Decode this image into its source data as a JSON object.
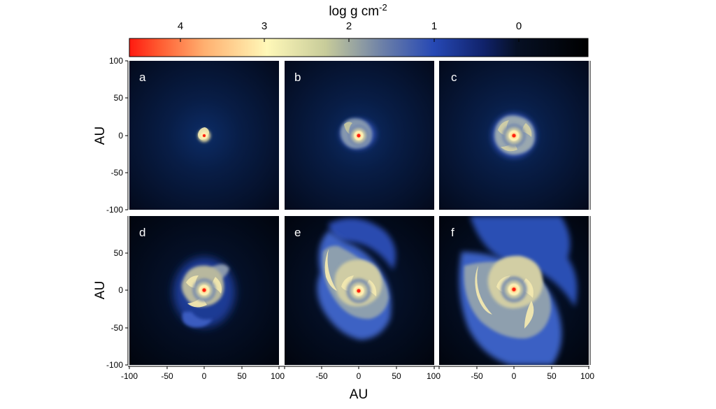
{
  "colorbar": {
    "label_main": "log g cm",
    "label_exp": "-2",
    "ticks": [
      {
        "value": 4,
        "label": "4"
      },
      {
        "value": 3,
        "label": "3"
      },
      {
        "value": 2,
        "label": "2"
      },
      {
        "value": 1,
        "label": "1"
      },
      {
        "value": 0,
        "label": "0"
      }
    ],
    "range": [
      4.65,
      -0.85
    ],
    "stops": [
      {
        "v": 4.65,
        "color": "#ff1a10"
      },
      {
        "v": 4.3,
        "color": "#ff5a30"
      },
      {
        "v": 3.75,
        "color": "#ffb070"
      },
      {
        "v": 3.0,
        "color": "#fff8b8"
      },
      {
        "v": 2.3,
        "color": "#c8cc9a"
      },
      {
        "v": 1.6,
        "color": "#6a7ea8"
      },
      {
        "v": 1.0,
        "color": "#2648b4"
      },
      {
        "v": 0.4,
        "color": "#10226a"
      },
      {
        "v": 0.0,
        "color": "#061024"
      },
      {
        "v": -0.85,
        "color": "#000000"
      }
    ]
  },
  "axes": {
    "xlabel": "AU",
    "ylabel": "AU",
    "range": [
      -100,
      100
    ],
    "ticks": [
      -100,
      -50,
      0,
      50,
      100
    ],
    "tick_labels": [
      "-100",
      "-50",
      "0",
      "50",
      "100"
    ]
  },
  "panels": [
    {
      "label": "a",
      "disk_radius_au": 10,
      "spiral_extent": "compact"
    },
    {
      "label": "b",
      "disk_radius_au": 22,
      "spiral_extent": "small"
    },
    {
      "label": "c",
      "disk_radius_au": 30,
      "spiral_extent": "small"
    },
    {
      "label": "d",
      "disk_radius_au": 40,
      "spiral_extent": "medium"
    },
    {
      "label": "e",
      "disk_radius_au": 100,
      "spiral_extent": "large"
    },
    {
      "label": "f",
      "disk_radius_au": 100,
      "spiral_extent": "very large"
    }
  ]
}
